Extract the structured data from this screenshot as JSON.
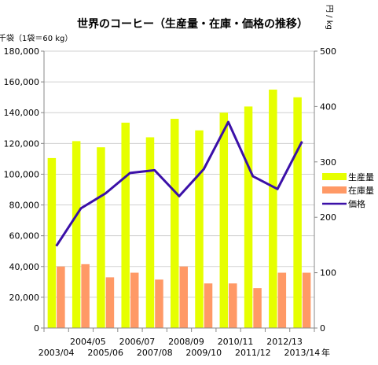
{
  "chart_data": {
    "type": "bar",
    "title": "世界のコーヒー（生産量・在庫・価格の推移）",
    "ylabel_left": "千袋（1袋＝60 kg）",
    "ylabel_right": "円 / kg",
    "xlabel_suffix": "年",
    "categories": [
      "2003/04",
      "2004/05",
      "2005/06",
      "2006/07",
      "2007/08",
      "2008/09",
      "2009/10",
      "2010/11",
      "2011/12",
      "2012/13",
      "2013/14"
    ],
    "y_left_lim": [
      0,
      180000
    ],
    "y_left_ticks": [
      "0",
      "20,000",
      "40,000",
      "60,000",
      "80,000",
      "100,000",
      "120,000",
      "140,000",
      "160,000",
      "180,000"
    ],
    "y_right_lim": [
      0,
      500
    ],
    "y_right_ticks": [
      "0",
      "100",
      "200",
      "300",
      "400",
      "500"
    ],
    "series": [
      {
        "name": "生産量",
        "type": "bar",
        "axis": "left",
        "color": "#e6ff00",
        "values": [
          110500,
          121500,
          117500,
          133500,
          124000,
          136000,
          128500,
          140000,
          144000,
          155000,
          150000
        ]
      },
      {
        "name": "在庫量",
        "type": "bar",
        "axis": "left",
        "color": "#ff9966",
        "values": [
          40000,
          41500,
          33000,
          36000,
          31500,
          40000,
          29000,
          29000,
          26000,
          36000,
          36000
        ]
      },
      {
        "name": "価格",
        "type": "line",
        "axis": "right",
        "color": "#3b10a8",
        "values": [
          148,
          216,
          243,
          280,
          285,
          238,
          287,
          372,
          274,
          251,
          337
        ]
      }
    ],
    "grid": "horizontal",
    "legend_position": "right"
  }
}
